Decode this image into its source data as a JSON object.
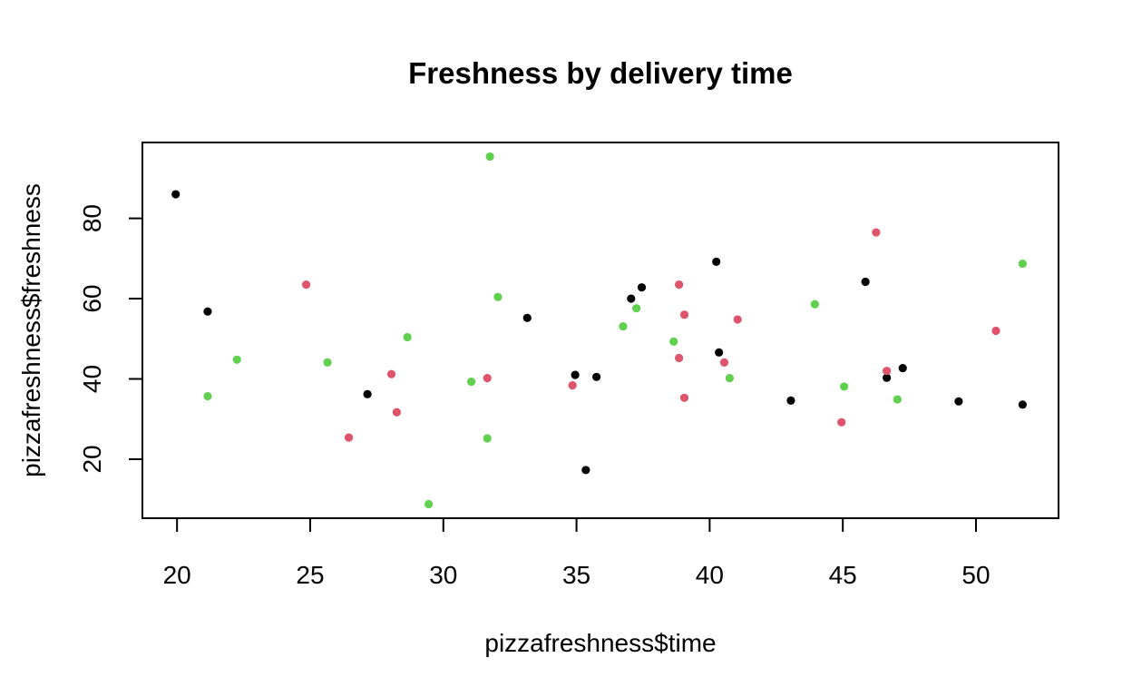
{
  "chart_data": {
    "type": "scatter",
    "title": "Freshness by delivery time",
    "xlabel": "pizzafreshness$time",
    "ylabel": "pizzafreshness$freshness",
    "xlim": [
      18.7,
      53.1
    ],
    "ylim": [
      5.3,
      98.9
    ],
    "x_ticks": [
      20,
      25,
      30,
      35,
      40,
      45,
      50
    ],
    "y_ticks": [
      20,
      40,
      60,
      80
    ],
    "grid": false,
    "legend": "none",
    "series": [
      {
        "color": "#000000",
        "points": [
          {
            "x": 19.95,
            "y": 86.0
          },
          {
            "x": 21.15,
            "y": 56.8
          },
          {
            "x": 27.15,
            "y": 36.2
          },
          {
            "x": 33.15,
            "y": 55.2
          },
          {
            "x": 34.95,
            "y": 41.0
          },
          {
            "x": 35.35,
            "y": 17.3
          },
          {
            "x": 35.75,
            "y": 40.5
          },
          {
            "x": 37.05,
            "y": 60.0
          },
          {
            "x": 37.45,
            "y": 62.8
          },
          {
            "x": 40.25,
            "y": 69.2
          },
          {
            "x": 40.35,
            "y": 46.6
          },
          {
            "x": 43.05,
            "y": 34.6
          },
          {
            "x": 45.85,
            "y": 64.2
          },
          {
            "x": 46.65,
            "y": 40.3
          },
          {
            "x": 47.25,
            "y": 42.7
          },
          {
            "x": 49.35,
            "y": 34.4
          },
          {
            "x": 51.75,
            "y": 33.6
          }
        ]
      },
      {
        "color": "#DF536B",
        "points": [
          {
            "x": 24.85,
            "y": 63.5
          },
          {
            "x": 26.45,
            "y": 25.4
          },
          {
            "x": 28.05,
            "y": 41.2
          },
          {
            "x": 28.25,
            "y": 31.7
          },
          {
            "x": 31.65,
            "y": 40.2
          },
          {
            "x": 34.85,
            "y": 38.4
          },
          {
            "x": 38.85,
            "y": 63.5
          },
          {
            "x": 38.85,
            "y": 45.2
          },
          {
            "x": 39.05,
            "y": 56.0
          },
          {
            "x": 39.05,
            "y": 35.3
          },
          {
            "x": 40.55,
            "y": 44.1
          },
          {
            "x": 41.05,
            "y": 54.8
          },
          {
            "x": 44.95,
            "y": 29.2
          },
          {
            "x": 46.25,
            "y": 76.5
          },
          {
            "x": 46.65,
            "y": 42.0
          },
          {
            "x": 50.75,
            "y": 52.0
          }
        ]
      },
      {
        "color": "#61D04F",
        "points": [
          {
            "x": 21.15,
            "y": 35.7
          },
          {
            "x": 22.25,
            "y": 44.8
          },
          {
            "x": 25.65,
            "y": 44.1
          },
          {
            "x": 28.65,
            "y": 50.4
          },
          {
            "x": 29.45,
            "y": 8.8
          },
          {
            "x": 31.05,
            "y": 39.3
          },
          {
            "x": 31.65,
            "y": 25.2
          },
          {
            "x": 31.75,
            "y": 95.4
          },
          {
            "x": 32.05,
            "y": 60.4
          },
          {
            "x": 36.75,
            "y": 53.1
          },
          {
            "x": 37.25,
            "y": 57.6
          },
          {
            "x": 38.65,
            "y": 49.3
          },
          {
            "x": 40.75,
            "y": 40.2
          },
          {
            "x": 43.95,
            "y": 58.6
          },
          {
            "x": 45.05,
            "y": 38.1
          },
          {
            "x": 47.05,
            "y": 34.9
          },
          {
            "x": 51.75,
            "y": 68.7
          }
        ]
      }
    ]
  }
}
